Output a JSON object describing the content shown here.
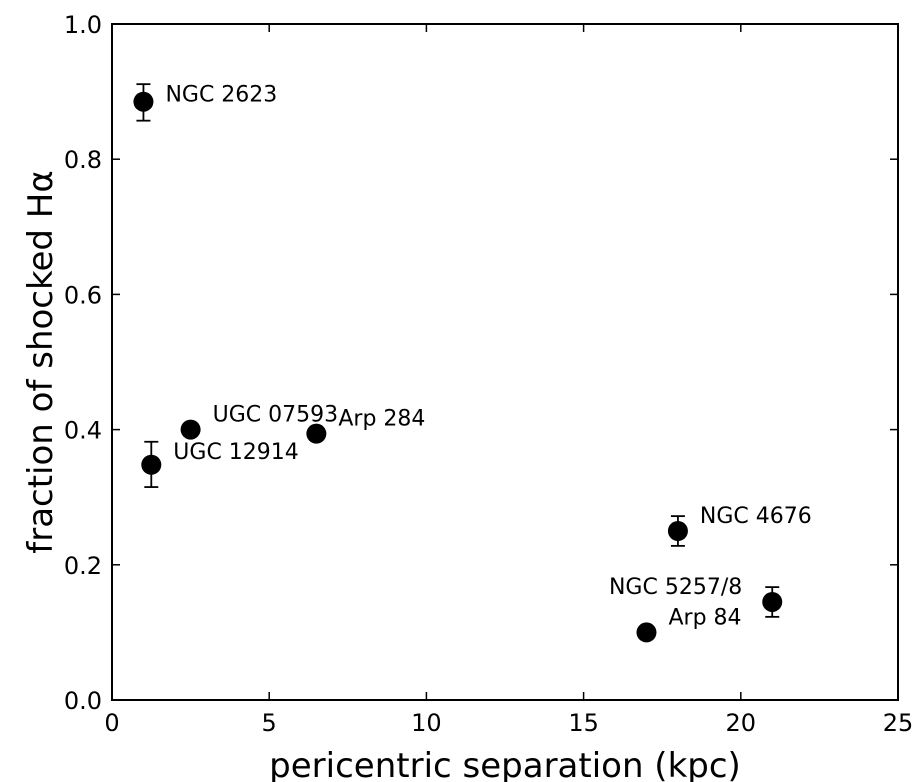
{
  "chart_data": {
    "type": "scatter",
    "title": "",
    "xlabel": "pericentric separation (kpc)",
    "ylabel": "fraction of shocked Hα",
    "xlim": [
      0,
      25
    ],
    "ylim": [
      0.0,
      1.0
    ],
    "xticks": [
      "0",
      "5",
      "10",
      "15",
      "20",
      "25"
    ],
    "yticks": [
      "0.0",
      "0.2",
      "0.4",
      "0.6",
      "0.8",
      "1.0"
    ],
    "grid": false,
    "marker_color": "#000000",
    "points": [
      {
        "label": "NGC 2623",
        "x": 1.0,
        "y": 0.885,
        "err_low": 0.028,
        "err_high": 0.026
      },
      {
        "label": "UGC 12914",
        "x": 1.25,
        "y": 0.348,
        "err_low": 0.033,
        "err_high": 0.034
      },
      {
        "label": "UGC 07593",
        "x": 2.5,
        "y": 0.4
      },
      {
        "label": "Arp 284",
        "x": 6.5,
        "y": 0.394
      },
      {
        "label": "NGC 4676",
        "x": 18.0,
        "y": 0.25,
        "err_low": 0.022,
        "err_high": 0.022
      },
      {
        "label": "NGC 5257/8",
        "x": 21.0,
        "y": 0.145,
        "err_low": 0.022,
        "err_high": 0.022
      },
      {
        "label": "Arp 84",
        "x": 17.0,
        "y": 0.1
      }
    ]
  }
}
